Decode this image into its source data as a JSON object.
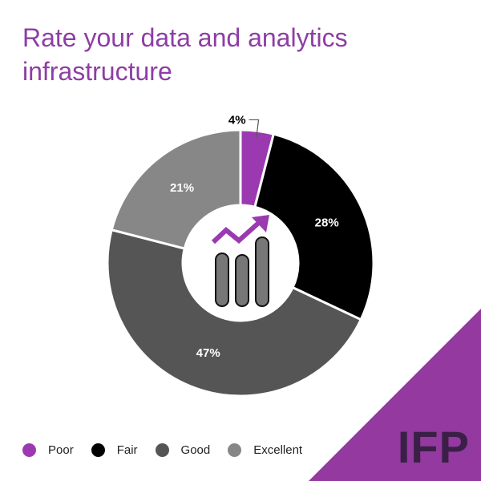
{
  "title": "Rate your data and analytics infrastructure",
  "brand": "IFP",
  "colors": {
    "accent": "#8e3da5",
    "corner": "#93399f",
    "brand_text": "#3a2046"
  },
  "center_icon": "rising-bar-chart-icon",
  "chart_data": {
    "type": "pie",
    "subtype": "donut",
    "categories": [
      "Poor",
      "Fair",
      "Good",
      "Excellent"
    ],
    "values": [
      4,
      28,
      47,
      21
    ],
    "labels": [
      "4%",
      "28%",
      "47%",
      "21%"
    ],
    "colors": [
      "#9b3ab0",
      "#000000",
      "#555555",
      "#878787"
    ],
    "label_colors": [
      "#000000",
      "#ffffff",
      "#ffffff",
      "#ffffff"
    ],
    "legend_position": "bottom-left"
  }
}
